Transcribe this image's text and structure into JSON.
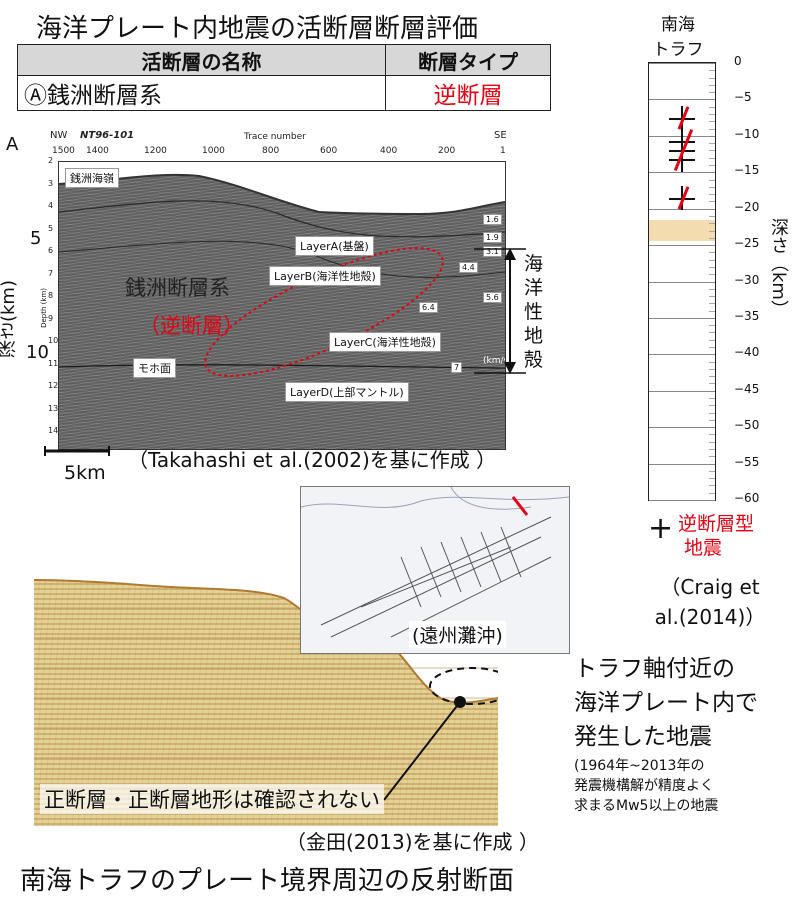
{
  "header": {
    "title": "海洋プレート内地震の活断層断層評価"
  },
  "fault_table": {
    "col_name": "活断層の名称",
    "col_type": "断層タイプ",
    "name": "Ⓐ銭洲断層系",
    "type": "逆断層"
  },
  "seismic": {
    "panel_letter": "A",
    "nw": "NW",
    "line_id": "NT96-101",
    "se": "SE",
    "trace_label": "Trace number",
    "trace_ticks": [
      "1500",
      "1400",
      "1200",
      "1000",
      "800",
      "600",
      "400",
      "200",
      "1"
    ],
    "depth_ticks": [
      "2",
      "3",
      "4",
      "5",
      "6",
      "7",
      "8",
      "9",
      "10",
      "11",
      "12",
      "13",
      "14"
    ],
    "depth_axis_small": "Depth (km)",
    "y_label": "深さ(km)",
    "y_tick_5": "5",
    "y_tick_10": "10",
    "ridge_label": "銭洲海嶺",
    "layer_a": "LayerA(基盤)",
    "layer_b": "LayerB(海洋性地殻)",
    "layer_c": "LayerC(海洋性地殻)",
    "layer_d": "LayerD(上部マントル)",
    "moho": "モホ面",
    "fault_name": "銭洲断層系",
    "fault_type": "（逆断層）",
    "crust_label": [
      "海",
      "洋",
      "性",
      "地",
      "殻"
    ],
    "velocities": [
      "1.6",
      "1.9",
      "3.1",
      "4.4",
      "5.6",
      "6.4",
      "7"
    ],
    "kms": "(km/s)",
    "scale_label": "5km",
    "source": "（Takahashi et al.(2002)を基に作成 ）"
  },
  "profile": {
    "map_label": "(遠州灘沖)",
    "note": "正断層・正断層地形は確認されない",
    "source": "（金田(2013)を基に作成 ）",
    "caption": "南海トラフのプレート境界周辺の反射断面"
  },
  "depth_column": {
    "title_line1": "南海",
    "title_line2": "トラフ",
    "ticks": [
      "0",
      "−5",
      "−10",
      "−15",
      "−20",
      "−25",
      "−30",
      "−35",
      "−40",
      "−45",
      "−50",
      "−55",
      "−60"
    ],
    "axis_label": "深さ（km）",
    "legend_line1": "逆断層型",
    "legend_line2": "地震",
    "legend_marker": "+",
    "source_line1": "（Craig et",
    "source_line2": "al.(2014)）",
    "events": [
      {
        "depth_km": 7.5,
        "stacked": 1
      },
      {
        "depth_km": 12,
        "stacked": 3
      },
      {
        "depth_km": 18.5,
        "stacked": 1
      }
    ],
    "band_top_km": 21.5,
    "band_bottom_km": 24.5
  },
  "description": {
    "line1": "トラフ軸付近の",
    "line2": "海洋プレート内で",
    "line3": "発生した地震",
    "small1": "(1964年~2013年の",
    "small2": "発震機構解が精度よく",
    "small3": "求まるMw5以上の地震"
  },
  "colors": {
    "accent_red": "#e60012",
    "band": "#f3dcb0"
  }
}
